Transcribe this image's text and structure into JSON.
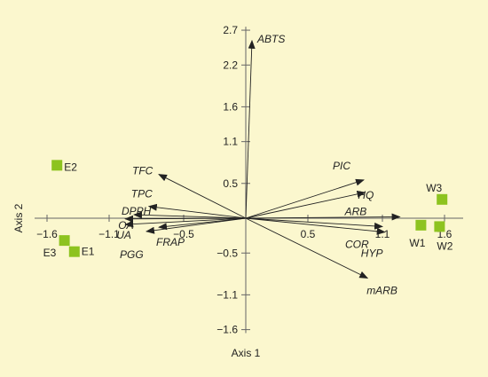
{
  "colors": {
    "background": "#fbf7ce",
    "axis": "#666666",
    "vector": "#222222",
    "site": "#8dc31f",
    "text": "#222222"
  },
  "chart_data": {
    "type": "scatter",
    "subtype": "biplot",
    "xlabel": "Axis 1",
    "ylabel": "Axis 2",
    "xlim": [
      -1.7,
      1.75
    ],
    "ylim": [
      -1.65,
      2.75
    ],
    "grid": false,
    "x_ticks": [
      -1.6,
      -1.1,
      -0.5,
      0.5,
      1.1,
      1.6
    ],
    "x_tick_labels": [
      "−1.6",
      "−1.1",
      "−0.5",
      "0.5",
      "1.1",
      "1.6"
    ],
    "y_ticks": [
      2.7,
      2.2,
      1.6,
      1.1,
      0.5,
      -0.5,
      -1.1,
      -1.6
    ],
    "y_tick_labels": [
      "2.7",
      "2.2",
      "1.6",
      "1.1",
      "0.5",
      "−0.5",
      "−1.1",
      "−1.6"
    ],
    "vectors": [
      {
        "name": "ABTS",
        "x": 0.05,
        "y": 2.55
      },
      {
        "name": "TFC",
        "x": -0.7,
        "y": 0.63
      },
      {
        "name": "TPC",
        "x": -0.78,
        "y": 0.17
      },
      {
        "name": "DPPH",
        "x": -0.9,
        "y": 0.05
      },
      {
        "name": "OA",
        "x": -0.97,
        "y": -0.01
      },
      {
        "name": "UA",
        "x": -0.97,
        "y": -0.09
      },
      {
        "name": "FRAP",
        "x": -0.7,
        "y": -0.13
      },
      {
        "name": "PGG",
        "x": -0.8,
        "y": -0.19
      },
      {
        "name": "PIC",
        "x": 0.95,
        "y": 0.55
      },
      {
        "name": "HQ",
        "x": 0.96,
        "y": 0.37
      },
      {
        "name": "ARB",
        "x": 1.24,
        "y": 0.02
      },
      {
        "name": "COR",
        "x": 1.1,
        "y": -0.12
      },
      {
        "name": "HYP",
        "x": 1.12,
        "y": -0.2
      },
      {
        "name": "mARB",
        "x": 0.98,
        "y": -0.86
      }
    ],
    "sites": [
      {
        "name": "E1",
        "x": -1.38,
        "y": -0.48
      },
      {
        "name": "E2",
        "x": -1.52,
        "y": 0.76
      },
      {
        "name": "E3",
        "x": -1.46,
        "y": -0.32
      },
      {
        "name": "W1",
        "x": 1.41,
        "y": -0.1
      },
      {
        "name": "W2",
        "x": 1.56,
        "y": -0.12
      },
      {
        "name": "W3",
        "x": 1.58,
        "y": 0.27
      }
    ]
  }
}
